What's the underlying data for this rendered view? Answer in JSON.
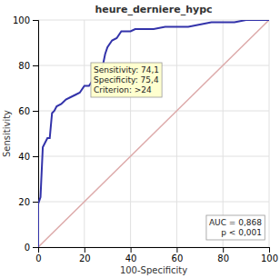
{
  "chart_data": {
    "type": "line",
    "title": "heure_derniere_hypc",
    "xlabel": "100-Specificity",
    "ylabel": "Sensitivity",
    "xlim": [
      0,
      100
    ],
    "ylim": [
      0,
      100
    ],
    "xticks": [
      0,
      20,
      40,
      60,
      80,
      100
    ],
    "yticks": [
      0,
      20,
      40,
      60,
      80,
      100
    ],
    "grid": true,
    "series": [
      {
        "color": "#ddaaaa",
        "x": [
          0,
          100
        ],
        "values": [
          0,
          100
        ]
      },
      {
        "color": "#3333aa",
        "x": [
          0,
          0,
          1,
          2,
          3,
          4,
          5,
          6,
          7,
          8,
          10,
          12,
          14,
          16,
          18,
          20,
          22,
          24,
          25,
          26,
          27,
          28,
          29,
          30,
          32,
          34,
          36,
          38,
          40,
          42,
          45,
          50,
          55,
          60,
          65,
          70,
          75,
          80,
          85,
          90,
          95,
          100
        ],
        "values": [
          0,
          19,
          22,
          44,
          46,
          48,
          48,
          59,
          60,
          62,
          63,
          65,
          66,
          67,
          68,
          71,
          71,
          74,
          76,
          77,
          78,
          80,
          85,
          88,
          91,
          92,
          95,
          95,
          95,
          96,
          96,
          96,
          97,
          97,
          97,
          98,
          99,
          99,
          99,
          100,
          100,
          100
        ]
      }
    ],
    "annotations": [
      {
        "text": "Sensitivity: 74,1\nSpecificity: 75,4\nCriterion: >24",
        "x": 24,
        "y": 68
      },
      {
        "text": "AUC = 0,868\np < 0,001"
      }
    ]
  }
}
